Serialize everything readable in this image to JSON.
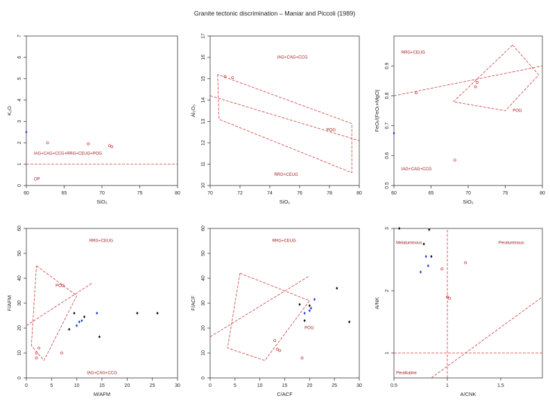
{
  "title": "Granite tectonic discrimination – Maniar and Piccoli (1989)",
  "chart_data": [
    {
      "type": "scatter",
      "xlabel": "SiO₂",
      "ylabel": "K₂O",
      "xlim": [
        60,
        80
      ],
      "ylim": [
        0,
        7
      ],
      "xticks": [
        60,
        65,
        70,
        75,
        80
      ],
      "yticks": [
        0,
        1,
        2,
        3,
        4,
        5,
        6,
        7
      ],
      "series": [
        {
          "color": "#1f3fcf",
          "filled": true,
          "x": [
            60
          ],
          "values": [
            2.5
          ]
        },
        {
          "color": "#cc3333",
          "filled": false,
          "x": [
            62.8,
            68.2,
            71,
            71.3
          ],
          "values": [
            2.0,
            1.95,
            1.87,
            1.82
          ]
        }
      ],
      "lines": [
        {
          "x": [
            60,
            80
          ],
          "y": [
            1,
            1
          ]
        }
      ],
      "annotations": [
        {
          "text": "IAG+CAG+CCG+RRG+CEUG+POG",
          "x": 61,
          "y": 1.5
        },
        {
          "text": "OP",
          "x": 61,
          "y": 0.3
        }
      ]
    },
    {
      "type": "scatter",
      "xlabel": "SiO₂",
      "ylabel": "Al₂O₃",
      "xlim": [
        70,
        80
      ],
      "ylim": [
        10,
        17
      ],
      "xticks": [
        70,
        72,
        74,
        76,
        78,
        80
      ],
      "yticks": [
        10,
        11,
        12,
        13,
        14,
        15,
        16,
        17
      ],
      "series": [
        {
          "color": "#cc3333",
          "filled": false,
          "x": [
            71,
            71.5
          ],
          "values": [
            15.1,
            15.05
          ]
        }
      ],
      "lines": [
        {
          "x": [
            70,
            80
          ],
          "y": [
            14.2,
            12.1
          ]
        },
        {
          "x": [
            70.5,
            70.6,
            79.5,
            79.5,
            70.5
          ],
          "y": [
            15.2,
            13.1,
            10.6,
            12.9,
            15.2
          ]
        }
      ],
      "annotations": [
        {
          "text": "IAG+CAG+CCG",
          "x": 74.5,
          "y": 16
        },
        {
          "text": "POG",
          "x": 77.8,
          "y": 12.6
        },
        {
          "text": "RRG+CEUG",
          "x": 74.3,
          "y": 10.5
        }
      ]
    },
    {
      "type": "scatter",
      "xlabel": "SiO₂",
      "ylabel": "FeOₜ/(FeOₜ+MgO)",
      "xlim": [
        60,
        80
      ],
      "ylim": [
        0.5,
        1.0
      ],
      "xticks": [
        60,
        65,
        70,
        75,
        80
      ],
      "yticks": [
        0.5,
        0.6,
        0.7,
        0.8,
        0.9
      ],
      "series": [
        {
          "color": "#1f3fcf",
          "filled": true,
          "x": [
            60
          ],
          "values": [
            0.675
          ]
        },
        {
          "color": "#cc3333",
          "filled": false,
          "x": [
            63,
            71,
            71.2,
            68.2
          ],
          "values": [
            0.81,
            0.83,
            0.845,
            0.585
          ]
        }
      ],
      "lines": [
        {
          "x": [
            60,
            80
          ],
          "y": [
            0.8,
            0.9
          ]
        },
        {
          "x": [
            76,
            79.5,
            75,
            68,
            76
          ],
          "y": [
            0.97,
            0.87,
            0.75,
            0.78,
            0.97
          ]
        }
      ],
      "annotations": [
        {
          "text": "RRG+CEUG",
          "x": 61,
          "y": 0.945
        },
        {
          "text": "POG",
          "x": 76,
          "y": 0.75
        },
        {
          "text": "IAG+CAG+CCG",
          "x": 61,
          "y": 0.555
        }
      ]
    },
    {
      "type": "scatter",
      "xlabel": "M/AFM",
      "ylabel": "F/AFM",
      "xlim": [
        0,
        30
      ],
      "ylim": [
        0,
        60
      ],
      "xticks": [
        0,
        5,
        10,
        15,
        20,
        25,
        30
      ],
      "yticks": [
        0,
        10,
        20,
        30,
        40,
        50,
        60
      ],
      "series": [
        {
          "color": "#111111",
          "filled": true,
          "x": [
            9.5,
            8.5,
            11.5,
            14.5,
            22,
            26
          ],
          "values": [
            26,
            19.5,
            24.5,
            16.5,
            26,
            26
          ]
        },
        {
          "color": "#1f3fcf",
          "filled": true,
          "x": [
            10.5,
            11,
            14,
            10
          ],
          "values": [
            22.5,
            23,
            26,
            21
          ]
        },
        {
          "color": "#cc3333",
          "filled": false,
          "x": [
            2,
            2.5,
            2,
            7
          ],
          "values": [
            10,
            12,
            8,
            10
          ]
        }
      ],
      "lines": [
        {
          "x": [
            0,
            13
          ],
          "y": [
            21,
            38
          ]
        },
        {
          "x": [
            2,
            10,
            3.5,
            1,
            2
          ],
          "y": [
            45,
            33,
            7,
            13,
            45
          ]
        }
      ],
      "annotations": [
        {
          "text": "RRG+CEUG",
          "x": 12.5,
          "y": 55
        },
        {
          "text": "POG",
          "x": 5.8,
          "y": 37
        },
        {
          "text": "IAG+CAG+CCG",
          "x": 12,
          "y": 2
        }
      ]
    },
    {
      "type": "scatter",
      "xlabel": "C/ACF",
      "ylabel": "F/ACF",
      "xlim": [
        0,
        30
      ],
      "ylim": [
        0,
        60
      ],
      "xticks": [
        0,
        5,
        10,
        15,
        20,
        25,
        30
      ],
      "yticks": [
        0,
        10,
        20,
        30,
        40,
        50,
        60
      ],
      "series": [
        {
          "color": "#111111",
          "filled": true,
          "x": [
            18,
            19,
            20,
            25.5,
            28
          ],
          "values": [
            29.5,
            23,
            29,
            36,
            22.5
          ]
        },
        {
          "color": "#1f3fcf",
          "filled": true,
          "x": [
            19,
            20,
            21,
            20.3
          ],
          "values": [
            26,
            27,
            31.5,
            28
          ]
        },
        {
          "color": "#cc3333",
          "filled": false,
          "x": [
            13,
            14,
            18.5,
            13.5
          ],
          "values": [
            15,
            11,
            8,
            11.5
          ]
        }
      ],
      "lines": [
        {
          "x": [
            0,
            20
          ],
          "y": [
            16.5,
            41
          ]
        },
        {
          "x": [
            6,
            20,
            11,
            3.5,
            6
          ],
          "y": [
            42,
            31,
            7,
            12,
            42
          ]
        }
      ],
      "annotations": [
        {
          "text": "RRG+CEUG",
          "x": 12.5,
          "y": 55
        },
        {
          "text": "POG",
          "x": 19,
          "y": 20
        }
      ]
    },
    {
      "type": "scatter",
      "xlabel": "A/CNK",
      "ylabel": "A/NK",
      "xlim": [
        0.5,
        1.89
      ],
      "ylim": [
        0.6,
        3
      ],
      "xticks": [
        0.5,
        1,
        1.5
      ],
      "yticks": [
        1,
        2,
        3
      ],
      "series": [
        {
          "color": "#111111",
          "filled": true,
          "x": [
            0.55,
            0.83,
            0.85,
            0.78
          ],
          "values": [
            3,
            2.98,
            2.55,
            2.75
          ]
        },
        {
          "color": "#1f3fcf",
          "filled": true,
          "x": [
            0.75,
            0.8,
            0.82
          ],
          "values": [
            2.3,
            2.55,
            2.4
          ]
        },
        {
          "color": "#cc3333",
          "filled": false,
          "x": [
            0.95,
            1.0,
            1.02,
            1.17
          ],
          "values": [
            2.35,
            1.9,
            1.88,
            2.45
          ]
        }
      ],
      "lines": [
        {
          "x": [
            1,
            1
          ],
          "y": [
            0.6,
            3
          ]
        },
        {
          "x": [
            0.5,
            1.89
          ],
          "y": [
            1,
            1
          ]
        },
        {
          "x": [
            0.85,
            1.89
          ],
          "y": [
            0.6,
            1.9
          ]
        }
      ],
      "annotations": [
        {
          "text": "Metaluminous",
          "x": 0.52,
          "y": 2.77
        },
        {
          "text": "Peraluminous",
          "x": 1.48,
          "y": 2.77
        },
        {
          "text": "Peralkaline",
          "x": 0.52,
          "y": 0.68
        }
      ]
    }
  ]
}
